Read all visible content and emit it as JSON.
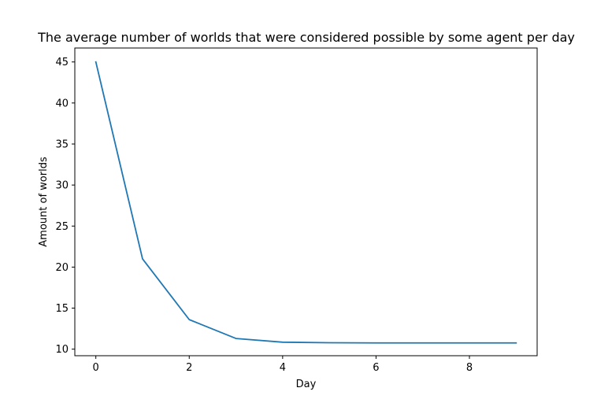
{
  "chart_data": {
    "type": "line",
    "title": "The average number of worlds that were considered possible by some agent per day",
    "xlabel": "Day",
    "ylabel": "Amount of worlds",
    "x": [
      0,
      1,
      2,
      3,
      4,
      5,
      6,
      7,
      8,
      9
    ],
    "series": [
      {
        "values": [
          45.0,
          21.0,
          13.6,
          11.3,
          10.85,
          10.78,
          10.76,
          10.76,
          10.76,
          10.76
        ],
        "color": "#1f77b4"
      }
    ],
    "xlim": [
      -0.45,
      9.45
    ],
    "ylim": [
      9.2,
      46.7
    ],
    "xticks": [
      0,
      2,
      4,
      6,
      8
    ],
    "yticks": [
      10,
      15,
      20,
      25,
      30,
      35,
      40,
      45
    ],
    "xtick_labels": [
      "0",
      "2",
      "4",
      "6",
      "8"
    ],
    "ytick_labels": [
      "10",
      "15",
      "20",
      "25",
      "30",
      "35",
      "40",
      "45"
    ],
    "grid": false,
    "legend": false
  }
}
